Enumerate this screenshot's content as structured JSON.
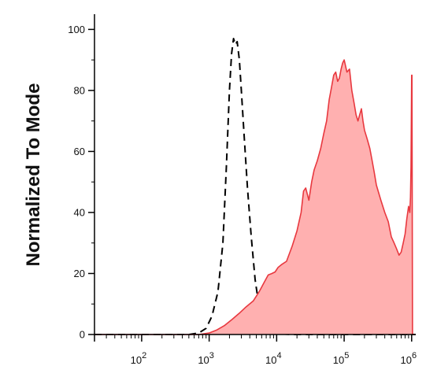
{
  "chart_data": {
    "type": "area",
    "title": "",
    "xlabel": "",
    "ylabel": "Normalized To Mode",
    "xscale": "log",
    "xlim": [
      20,
      1150000
    ],
    "ylim": [
      0,
      105
    ],
    "grid": false,
    "legend": "none",
    "x_ticks": [
      {
        "base": "10",
        "exp": "2",
        "value": 100
      },
      {
        "base": "10",
        "exp": "3",
        "value": 1000
      },
      {
        "base": "10",
        "exp": "4",
        "value": 10000
      },
      {
        "base": "10",
        "exp": "5",
        "value": 100000
      },
      {
        "base": "10",
        "exp": "6",
        "value": 1000000
      }
    ],
    "y_ticks": [
      "0",
      "20",
      "40",
      "60",
      "80",
      "100"
    ],
    "colors": {
      "filled_fill": "#ffb0b0",
      "filled_stroke": "#e8383f",
      "control_stroke": "#000000",
      "axis": "#000000"
    },
    "series": [
      {
        "style": "dashed-outline",
        "x": [
          20,
          500,
          700,
          900,
          1100,
          1350,
          1600,
          1800,
          2000,
          2150,
          2300,
          2450,
          2600,
          2800,
          3000,
          3300,
          3700,
          4200,
          4800,
          5500,
          6300,
          7300,
          8500,
          10000,
          12000,
          16000,
          30000,
          100000,
          1000000,
          1150000
        ],
        "y": [
          0,
          0,
          0.5,
          2,
          6,
          14,
          30,
          55,
          80,
          92,
          97,
          95,
          96,
          90,
          80,
          65,
          48,
          32,
          18,
          9,
          5,
          2.5,
          1.2,
          0.5,
          0.2,
          0,
          0,
          0,
          0,
          0
        ]
      },
      {
        "style": "filled",
        "x": [
          20,
          700,
          1000,
          1300,
          1700,
          2200,
          2800,
          3500,
          4500,
          5500,
          6500,
          7500,
          8500,
          9500,
          10500,
          12000,
          14000,
          17000,
          20000,
          23000,
          25000,
          27000,
          30000,
          33000,
          36000,
          40000,
          45000,
          50000,
          55000,
          60000,
          65000,
          70000,
          75000,
          80000,
          85000,
          90000,
          95000,
          100000,
          110000,
          120000,
          130000,
          140000,
          150000,
          160000,
          170000,
          180000,
          190000,
          200000,
          220000,
          240000,
          260000,
          280000,
          300000,
          350000,
          400000,
          450000,
          500000,
          550000,
          600000,
          650000,
          700000,
          750000,
          800000,
          850000,
          900000,
          940000,
          960000,
          980000,
          990000,
          1000000,
          1010000,
          1030000,
          1150000
        ],
        "y": [
          0,
          0,
          0.5,
          1.5,
          3,
          5,
          7,
          9,
          11,
          14,
          17,
          19.5,
          20,
          20.5,
          22,
          23,
          24,
          29,
          34,
          40,
          47,
          48,
          44,
          50,
          54,
          57,
          61,
          66,
          70,
          77,
          81,
          85,
          86,
          83,
          84,
          87,
          89,
          90,
          86,
          87,
          80,
          76,
          72,
          70,
          72,
          74,
          70,
          67,
          64,
          61,
          57,
          53,
          49,
          44,
          40,
          37,
          32,
          30,
          28,
          26,
          27,
          30,
          33,
          38,
          42,
          40,
          45,
          55,
          70,
          85,
          85,
          0,
          0
        ]
      }
    ]
  }
}
